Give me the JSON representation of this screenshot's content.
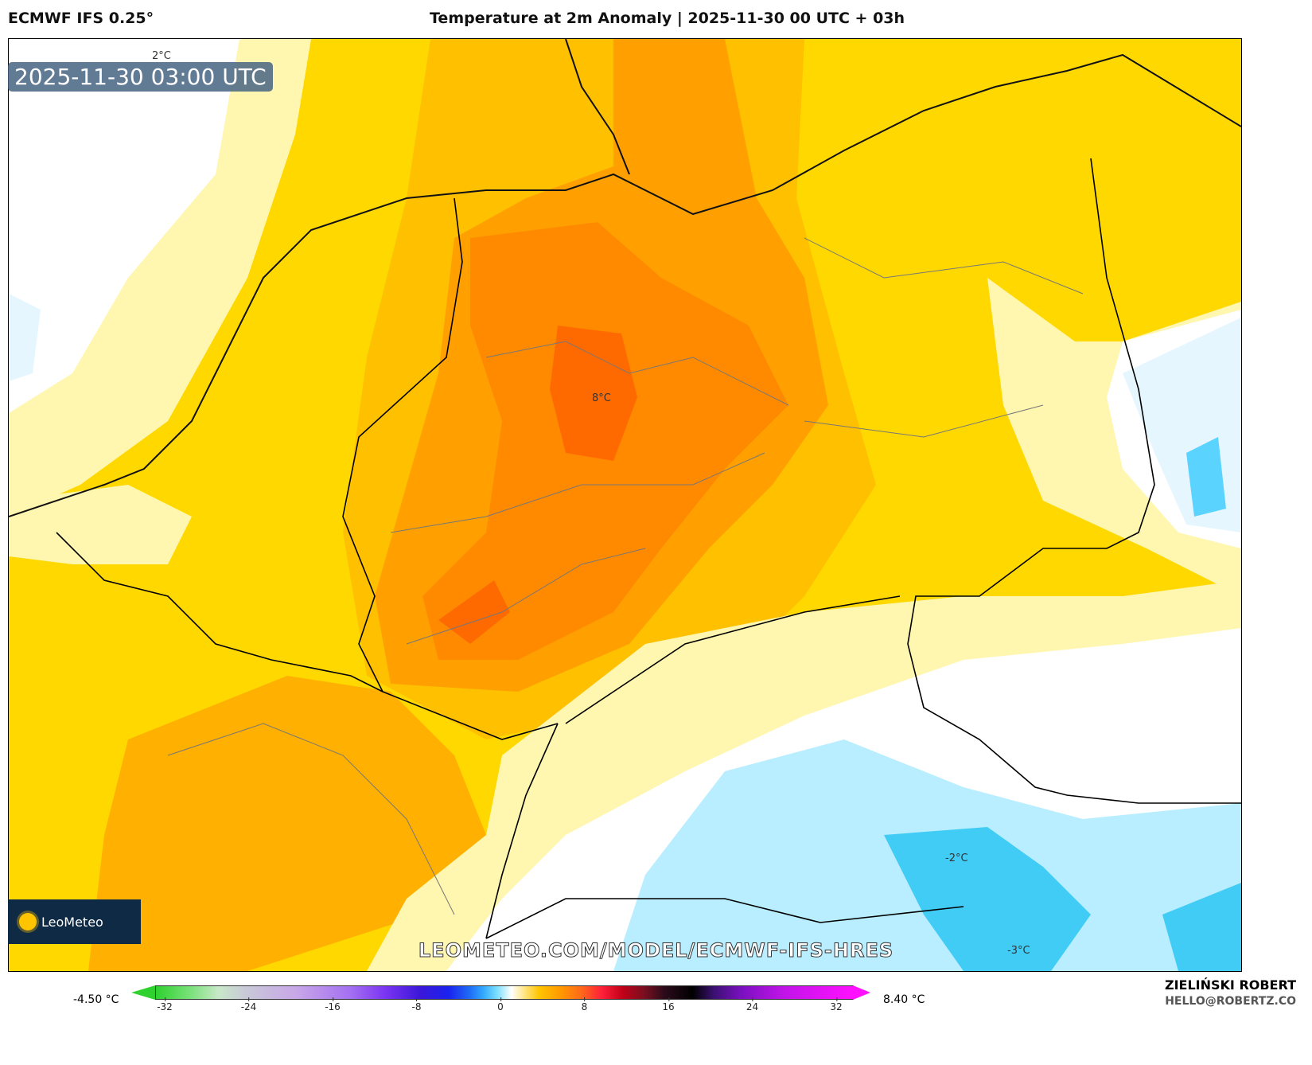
{
  "header": {
    "model": "ECMWF IFS 0.25°",
    "title": "Temperature at 2m Anomaly | 2025-11-30 00 UTC + 03h"
  },
  "map": {
    "timestamp": "2025-11-30 03:00 UTC",
    "contour_labels": [
      "2°C",
      "8°C",
      "-2°C",
      "-3°C"
    ],
    "watermark": "LEOMETEO.COM/MODEL/ECMWF-IFS-HRES",
    "logo": "LeoMeteo"
  },
  "colorbar": {
    "min_label": "-4.50 °C",
    "max_label": "8.40 °C",
    "ticks": [
      "-32",
      "-24",
      "-16",
      "-8",
      "0",
      "8",
      "16",
      "24",
      "32"
    ]
  },
  "credit": {
    "author": "ZIELIŃSKI ROBERT",
    "email": "HELLO@ROBERTZ.CO"
  }
}
